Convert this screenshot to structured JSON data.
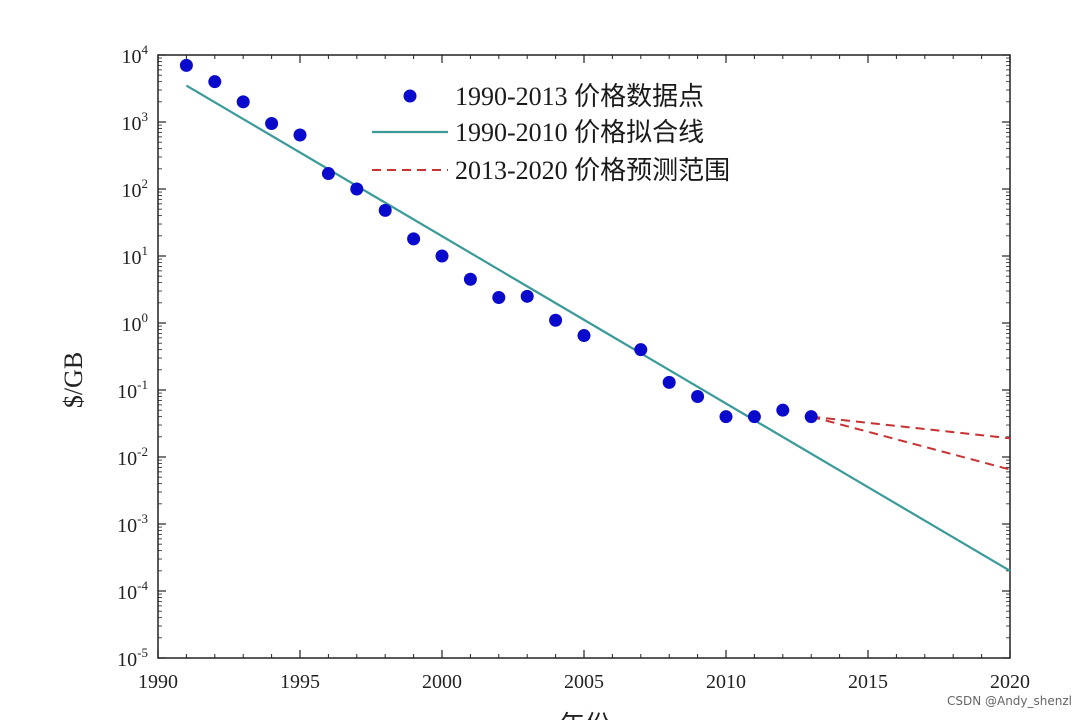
{
  "chart_data": {
    "type": "scatter",
    "title": "",
    "ylabel": "$/GB",
    "xlabel": "年份",
    "xlim": [
      1990,
      2020
    ],
    "ylim_exponent": [
      -5,
      4
    ],
    "y_scale": "log",
    "x_ticks": [
      1990,
      1995,
      2000,
      2005,
      2010,
      2015,
      2020
    ],
    "y_tick_base": "10",
    "y_tick_exponents": [
      "4",
      "3",
      "2",
      "1",
      "0",
      "-1",
      "-2",
      "-3",
      "-4",
      "-5"
    ],
    "legend_position": "top-center",
    "series": [
      {
        "name": "1990-2013 价格数据点",
        "kind": "scatter",
        "color": "#0a0acc",
        "x": [
          1991,
          1992,
          1993,
          1994,
          1995,
          1996,
          1997,
          1998,
          1999,
          2000,
          2001,
          2002,
          2003,
          2004,
          2005,
          2007,
          2008,
          2009,
          2010,
          2011,
          2012,
          2013
        ],
        "y": [
          7000,
          4000,
          2000,
          950,
          640,
          170,
          100,
          48,
          18,
          10,
          4.5,
          2.4,
          2.5,
          1.1,
          0.65,
          0.4,
          0.13,
          0.08,
          0.04,
          0.04,
          0.05,
          0.04
        ]
      },
      {
        "name": "1990-2010 价格拟合线",
        "kind": "line",
        "color": "#3a9a9a",
        "x": [
          1991,
          2020
        ],
        "y": [
          3500,
          0.0002
        ]
      },
      {
        "name": "2013-2020 价格预测范围",
        "kind": "dashed-range",
        "color": "#c83232",
        "lines": [
          {
            "x": [
              2013,
              2020
            ],
            "y": [
              0.04,
              0.019
            ]
          },
          {
            "x": [
              2013,
              2020
            ],
            "y": [
              0.04,
              0.0065
            ]
          }
        ]
      }
    ]
  },
  "watermark": "CSDN @Andy_shenzl"
}
